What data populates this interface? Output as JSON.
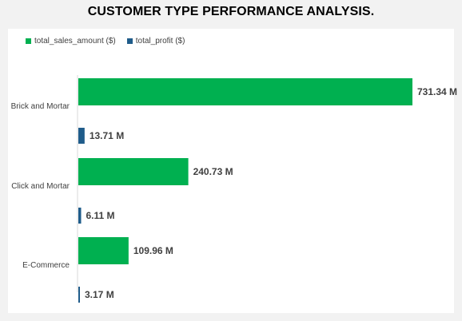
{
  "title": "CUSTOMER TYPE PERFORMANCE ANALYSIS.",
  "chart_data": {
    "type": "bar",
    "orientation": "horizontal",
    "categories": [
      "Brick and Mortar",
      "Click and Mortar",
      "E-Commerce"
    ],
    "series": [
      {
        "name": "total_sales_amount ($)",
        "values": [
          731.34,
          240.73,
          109.96
        ],
        "labels": [
          "731.34 M",
          "240.73 M",
          "109.96 M"
        ],
        "color": "#00b050"
      },
      {
        "name": "total_profit ($)",
        "values": [
          13.71,
          6.11,
          3.17
        ],
        "labels": [
          "13.71 M",
          "6.11 M",
          "3.17 M"
        ],
        "color": "#1f5c8a"
      }
    ],
    "xlim": [
      0,
      740
    ],
    "grid": false,
    "legend_position": "top-left"
  }
}
